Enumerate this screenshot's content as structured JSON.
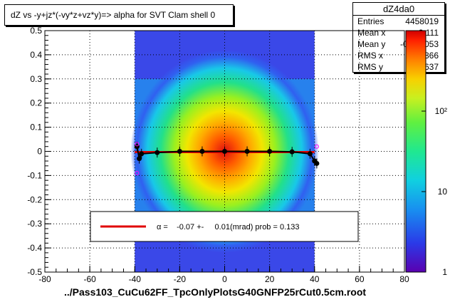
{
  "title": "dZ vs -y+jz*(-vy*z+vz*y)=> alpha for SVT Clam shell 0",
  "stats": {
    "name": "dZ4da0",
    "rows": [
      {
        "label": "Entries",
        "value": "4458019"
      },
      {
        "label": "Mean x",
        "value": "2.111"
      },
      {
        "label": "Mean y",
        "value": "-0.001053"
      },
      {
        "label": "RMS x",
        "value": "9.366"
      },
      {
        "label": "RMS y",
        "value": "0.1637"
      }
    ]
  },
  "xaxis_title": "../Pass103_CuCu62FF_TpcOnlyPlotsG40GNFP25rCut0.5cm.root",
  "fit_legend": {
    "text": "α =    -0.07 +-     0.01(mrad) prob = 0.133",
    "line_color": "#e00000"
  },
  "chart_data": {
    "type": "heatmap",
    "xlim": [
      -80,
      80
    ],
    "ylim": [
      -0.5,
      0.5
    ],
    "xticks": [
      -80,
      -60,
      -40,
      -20,
      0,
      20,
      40,
      60,
      80
    ],
    "yticks": [
      -0.5,
      -0.4,
      -0.3,
      -0.2,
      -0.1,
      0,
      0.1,
      0.2,
      0.3,
      0.4,
      0.5
    ],
    "xtick_labels": [
      "-80",
      "-60",
      "-40",
      "-20",
      "0",
      "20",
      "40",
      "60",
      "80"
    ],
    "ytick_labels": [
      "-0.5",
      "-0.4",
      "-0.3",
      "-0.2",
      "-0.1",
      "0",
      "0.1",
      "0.2",
      "0.3",
      "0.4",
      "0.5"
    ],
    "grid": true,
    "colorbar": {
      "scale": "log",
      "labels": [
        "1",
        "10",
        "10²"
      ],
      "label_values": [
        1,
        10,
        100
      ],
      "max": 1000
    },
    "data_xrange": [
      -40,
      40
    ],
    "profile_points": [
      {
        "x": -39,
        "y": 0.02
      },
      {
        "x": -38,
        "y": -0.03
      },
      {
        "x": -37,
        "y": -0.01
      },
      {
        "x": -30,
        "y": -0.005
      },
      {
        "x": -20,
        "y": 0.0
      },
      {
        "x": -10,
        "y": 0.0
      },
      {
        "x": 0,
        "y": 0.0
      },
      {
        "x": 10,
        "y": 0.0
      },
      {
        "x": 20,
        "y": 0.0
      },
      {
        "x": 30,
        "y": -0.002
      },
      {
        "x": 38,
        "y": -0.01
      },
      {
        "x": 40,
        "y": -0.04
      },
      {
        "x": 41,
        "y": -0.05
      }
    ],
    "fit_line": {
      "x": [
        -40,
        40
      ],
      "y": [
        -0.003,
        -0.003
      ]
    }
  },
  "colors": {
    "frame": "#000000",
    "fit_line": "#e00000",
    "profile": "#000000",
    "outlier": "#ff00ff"
  }
}
